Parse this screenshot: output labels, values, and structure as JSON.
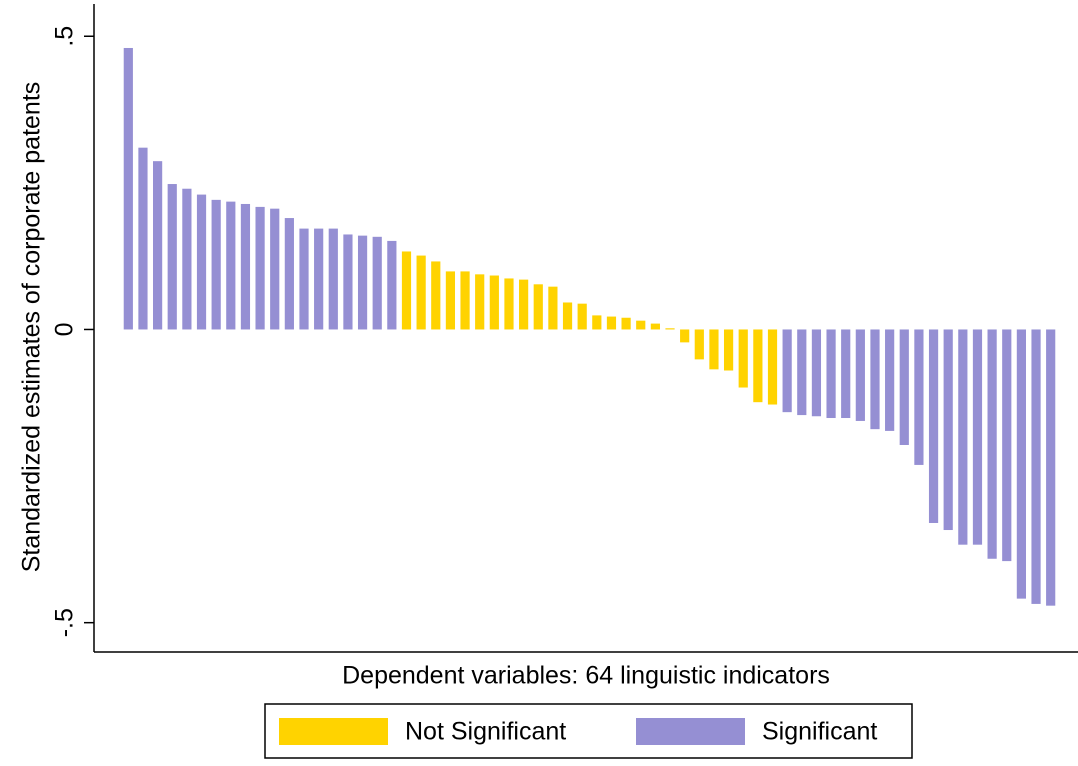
{
  "chart_data": {
    "type": "bar",
    "y_label": "Standardized estimates of corporate patents",
    "x_label": "Dependent variables: 64 linguistic indicators",
    "categories": [
      null,
      null,
      null,
      null,
      null,
      null,
      null,
      null,
      null,
      null,
      null,
      null,
      null,
      null,
      null,
      null,
      null,
      null,
      null,
      null,
      null,
      null,
      null,
      null,
      null,
      null,
      null,
      null,
      null,
      null,
      null,
      null,
      null,
      null,
      null,
      null,
      null,
      null,
      null,
      null,
      null,
      null,
      null,
      null,
      null,
      null,
      null,
      null,
      null,
      null,
      null,
      null,
      null,
      null,
      null,
      null,
      null,
      null,
      null,
      null,
      null,
      null,
      null,
      null
    ],
    "series": [
      {
        "name": "Not Significant",
        "color": "#ffd300",
        "values": [
          null,
          null,
          null,
          null,
          null,
          null,
          null,
          null,
          null,
          null,
          null,
          null,
          null,
          null,
          null,
          null,
          null,
          null,
          null,
          0.133,
          0.126,
          0.116,
          0.099,
          0.099,
          0.094,
          0.092,
          0.087,
          0.085,
          0.077,
          0.073,
          0.046,
          0.044,
          0.024,
          0.022,
          0.02,
          0.015,
          0.01,
          0.002,
          -0.022,
          -0.051,
          -0.068,
          -0.07,
          -0.099,
          -0.124,
          -0.128,
          null,
          null,
          null,
          null,
          null,
          null,
          null,
          null,
          null,
          null,
          null,
          null,
          null,
          null,
          null,
          null,
          null,
          null,
          null
        ]
      },
      {
        "name": "Significant",
        "color": "#958fd3",
        "values": [
          0.48,
          0.31,
          0.287,
          0.248,
          0.24,
          0.23,
          0.221,
          0.218,
          0.214,
          0.209,
          0.206,
          0.19,
          0.172,
          0.172,
          0.172,
          0.162,
          0.16,
          0.158,
          0.151,
          null,
          null,
          null,
          null,
          null,
          null,
          null,
          null,
          null,
          null,
          null,
          null,
          null,
          null,
          null,
          null,
          null,
          null,
          null,
          null,
          null,
          null,
          null,
          null,
          null,
          null,
          -0.141,
          -0.146,
          -0.148,
          -0.151,
          -0.151,
          -0.156,
          -0.17,
          -0.173,
          -0.197,
          -0.231,
          -0.33,
          -0.342,
          -0.367,
          -0.367,
          -0.391,
          -0.395,
          -0.459,
          -0.468,
          -0.471
        ]
      }
    ],
    "ylim": [
      -0.55,
      0.555
    ],
    "yticks": [
      {
        "value": -0.5,
        "label": "-.5"
      },
      0,
      {
        "value": 0.5,
        "label": ".5"
      }
    ],
    "grid": false,
    "legend": "bottom"
  }
}
